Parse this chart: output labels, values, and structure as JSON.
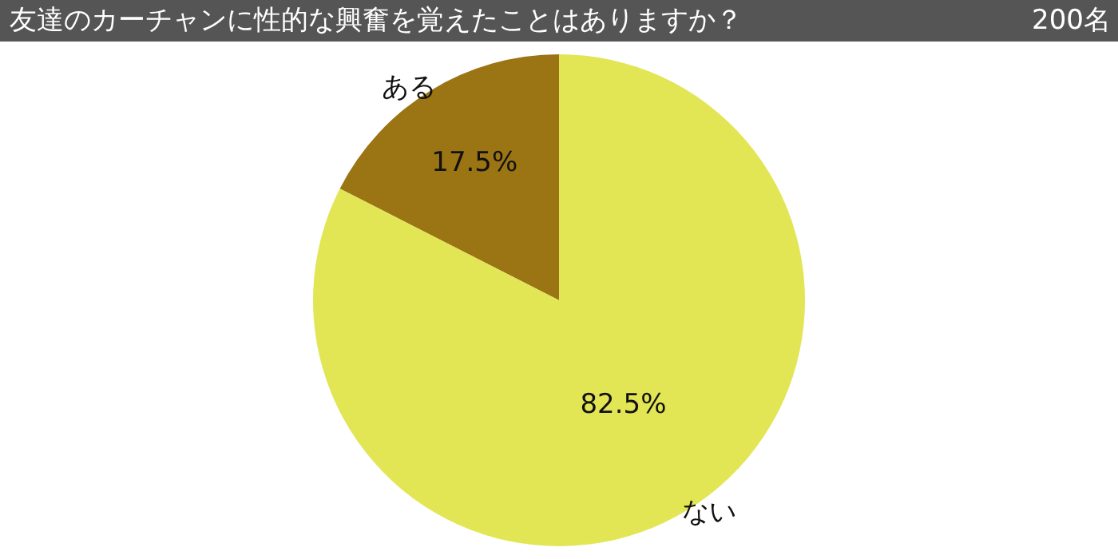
{
  "chart_data": {
    "type": "pie",
    "title": "友達のカーチャンに性的な興奮を覚えたことはありますか？",
    "subtitle": "200名",
    "categories": [
      "ある",
      "ない"
    ],
    "values": [
      17.5,
      82.5
    ],
    "value_labels": [
      "17.5%",
      "82.5%"
    ],
    "colors": [
      "#9b7413",
      "#e2e655"
    ],
    "legend": false
  }
}
